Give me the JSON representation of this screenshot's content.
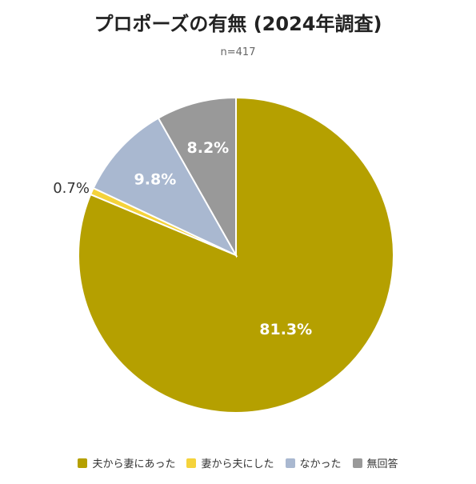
{
  "chart_data": {
    "type": "pie",
    "title": "プロポーズの有無 (2024年調査)",
    "subtitle": "n=417",
    "slices": [
      {
        "name": "夫から妻にあった",
        "value": 81.3,
        "label": "81.3%",
        "color": "#b5a000"
      },
      {
        "name": "妻から夫にした",
        "value": 0.7,
        "label": "0.7%",
        "color": "#f5d33b"
      },
      {
        "name": "なかった",
        "value": 9.8,
        "label": "9.8%",
        "color": "#a9b8d0"
      },
      {
        "name": "無回答",
        "value": 8.2,
        "label": "8.2%",
        "color": "#999999"
      }
    ],
    "legend_position": "bottom",
    "start_angle": "12 o'clock",
    "direction": "clockwise"
  }
}
